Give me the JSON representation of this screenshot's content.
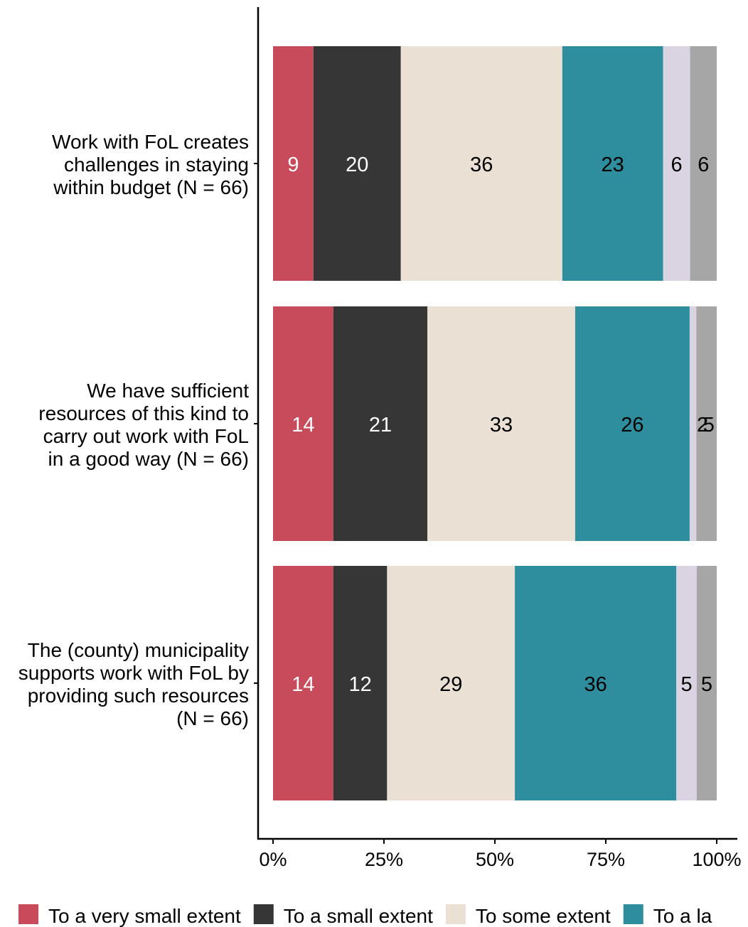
{
  "chart_data": {
    "type": "bar",
    "orientation": "horizontal",
    "stacked": true,
    "xlim": [
      0,
      100
    ],
    "x_ticks": [
      0,
      25,
      50,
      75,
      100
    ],
    "x_tick_labels": [
      "0%",
      "25%",
      "50%",
      "75%",
      "100%"
    ],
    "grid": false,
    "legend_position": "bottom",
    "categories": [
      [
        "Work with FoL creates",
        "challenges in staying",
        "within budget (N = 66)"
      ],
      [
        "We have sufficient",
        "resources of this kind to",
        "carry out work with FoL",
        "in a good way (N = 66)"
      ],
      [
        "The (county) municipality",
        "supports work with FoL by",
        "providing such resources",
        "(N = 66)"
      ]
    ],
    "series": [
      {
        "name": "To a very small extent",
        "color": "#C74B5B",
        "label_color": "#ffffff",
        "values": [
          9,
          14,
          14
        ]
      },
      {
        "name": "To a small extent",
        "color": "#363636",
        "label_color": "#ffffff",
        "values": [
          20,
          21,
          12
        ]
      },
      {
        "name": "To some extent",
        "color": "#EAE0D3",
        "label_color": "#000000",
        "values": [
          36,
          33,
          29
        ]
      },
      {
        "name": "To a la",
        "color": "#2E8E9E",
        "label_color": "#000000",
        "values": [
          23,
          26,
          36
        ]
      },
      {
        "name": "",
        "color": "#DAD3E2",
        "label_color": "#000000",
        "values": [
          6,
          2,
          5
        ]
      },
      {
        "name": "",
        "color": "#A6A6A6",
        "label_color": "#000000",
        "values": [
          6,
          5,
          5
        ]
      }
    ],
    "segment_shares": [
      [
        9.1,
        19.7,
        36.4,
        22.7,
        6.1,
        6.0
      ],
      [
        13.6,
        21.2,
        33.3,
        25.8,
        1.5,
        4.6
      ],
      [
        13.6,
        12.1,
        28.8,
        36.4,
        4.6,
        4.5
      ]
    ],
    "label_positions": [
      [
        null,
        null,
        null,
        null,
        null,
        null
      ],
      [
        null,
        null,
        null,
        null,
        96.8,
        98.2
      ],
      [
        null,
        null,
        null,
        null,
        null,
        null
      ]
    ]
  }
}
